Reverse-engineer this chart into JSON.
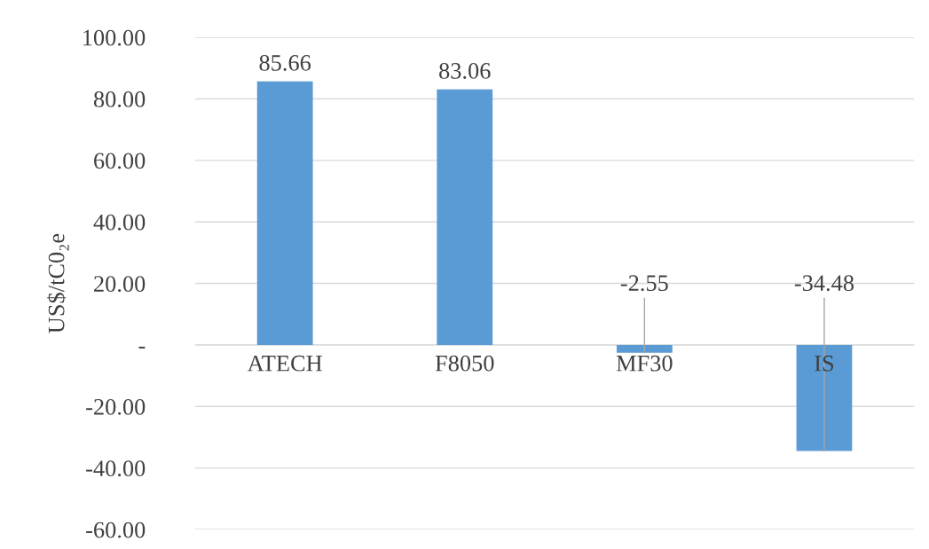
{
  "chart_data": {
    "type": "bar",
    "ylabel": "US$/tC0₂e",
    "categories": [
      "ATECH",
      "F8050",
      "MF30",
      "IS"
    ],
    "values": [
      85.66,
      83.06,
      -2.55,
      -34.48
    ],
    "color": "#5b9bd5",
    "ylim": [
      -60,
      100
    ],
    "yticks": [
      {
        "value": -60,
        "label": "-60.00"
      },
      {
        "value": -40,
        "label": "-40.00"
      },
      {
        "value": -20,
        "label": "-20.00"
      },
      {
        "value": 0,
        "label": "-"
      },
      {
        "value": 20,
        "label": "20.00"
      },
      {
        "value": 40,
        "label": "40.00"
      },
      {
        "value": 60,
        "label": "60.00"
      },
      {
        "value": 80,
        "label": "80.00"
      },
      {
        "value": 100,
        "label": "100.00"
      }
    ],
    "grid": "y",
    "data_labels": true,
    "legend": false
  }
}
